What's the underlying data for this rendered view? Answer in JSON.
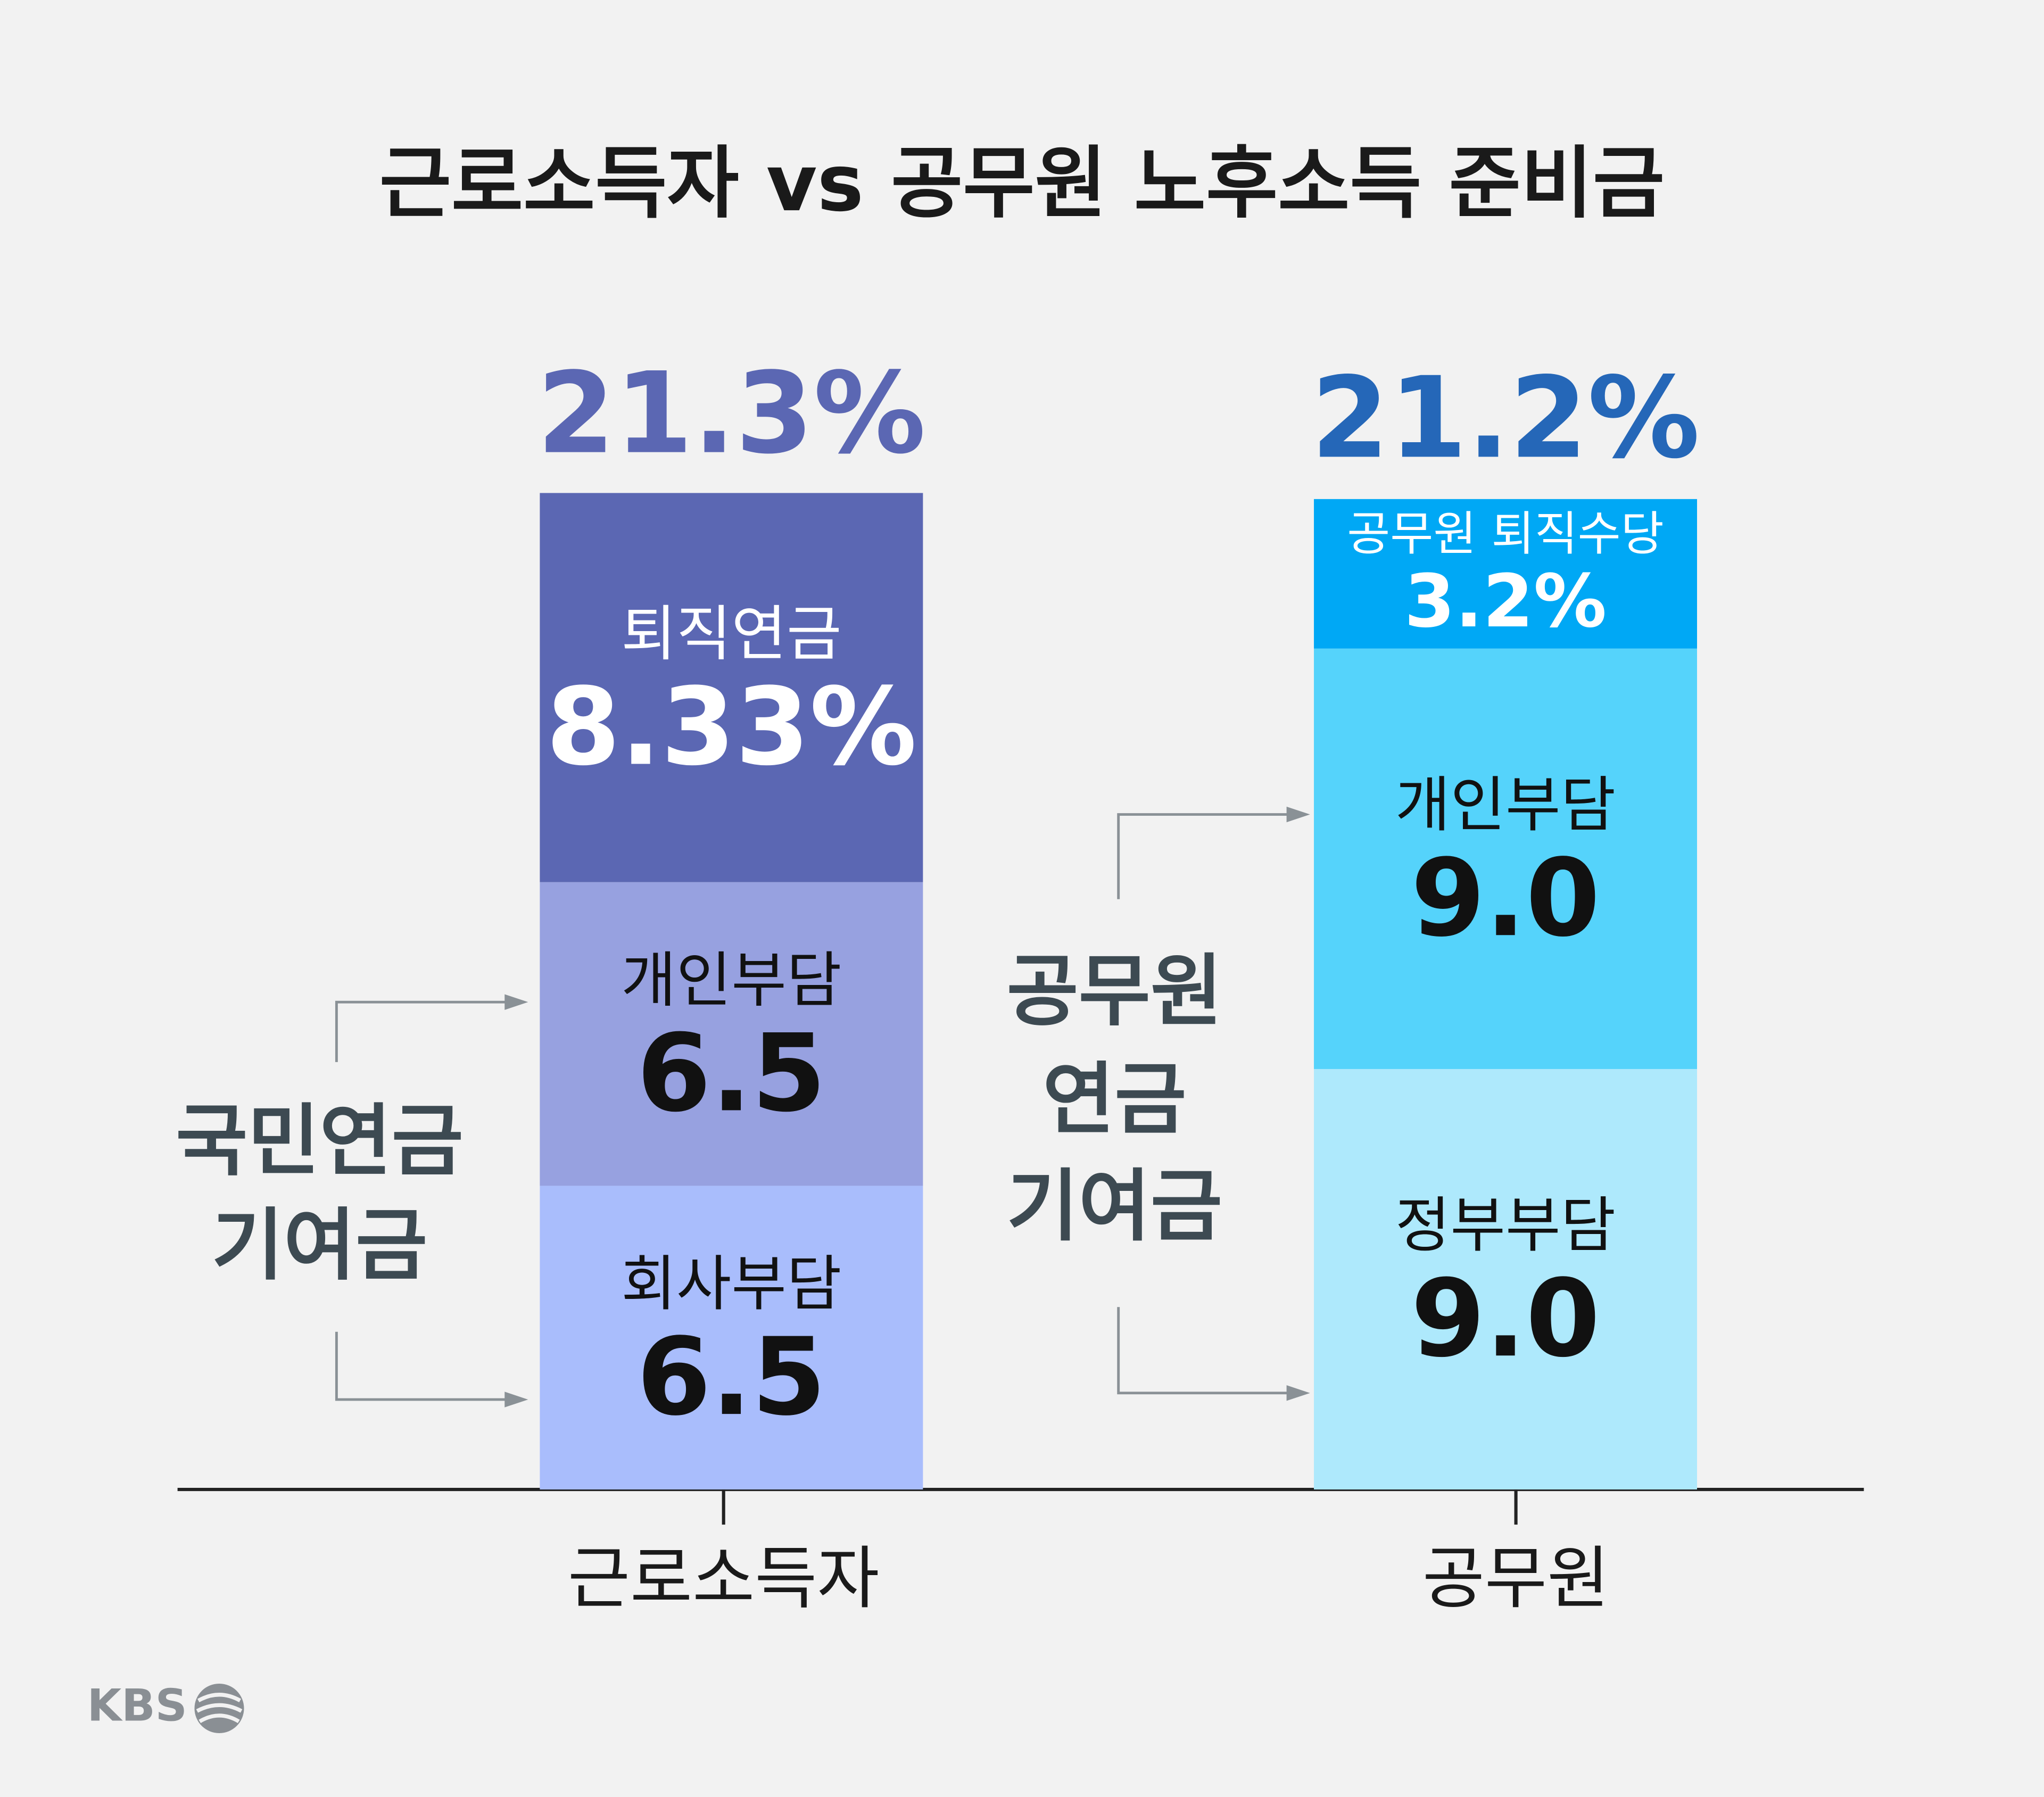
{
  "chart_data": {
    "type": "stacked-bar",
    "title": "근로소득자 vs 공무원 노후소득 준비금",
    "bars": [
      {
        "category": "근로소득자",
        "total": 21.3,
        "total_label": "21.3%",
        "total_color": "#5b67b3",
        "segments": [
          {
            "name": "회사부담",
            "value": 6.5,
            "color": "#a9bdfc",
            "text_color": "#111111"
          },
          {
            "name": "개인부담",
            "value": 6.5,
            "color": "#97a1e0",
            "text_color": "#111111"
          },
          {
            "name": "퇴직연금",
            "value": 8.33,
            "value_label": "8.33%",
            "color": "#5b67b3",
            "text_color": "#ffffff"
          }
        ]
      },
      {
        "category": "공무원",
        "total": 21.2,
        "total_label": "21.2%",
        "total_color": "#2567b8",
        "segments": [
          {
            "name": "정부부담",
            "value": 9,
            "value_label": "9.0",
            "color": "#aee9fc",
            "text_color": "#111111"
          },
          {
            "name": "개인부담",
            "value": 9,
            "value_label": "9.0",
            "color": "#55d3fb",
            "text_color": "#111111"
          },
          {
            "name": "공무원 퇴직수당",
            "value": 3.2,
            "value_label": "3.2%",
            "color": "#00a8f5",
            "text_color": "#ffffff"
          }
        ]
      }
    ],
    "annotations": [
      {
        "lines": [
          "국민연금",
          "기여금"
        ]
      },
      {
        "lines": [
          "공무원",
          "연금",
          "기여금"
        ]
      }
    ]
  },
  "footer": {
    "logo": "KBS"
  }
}
